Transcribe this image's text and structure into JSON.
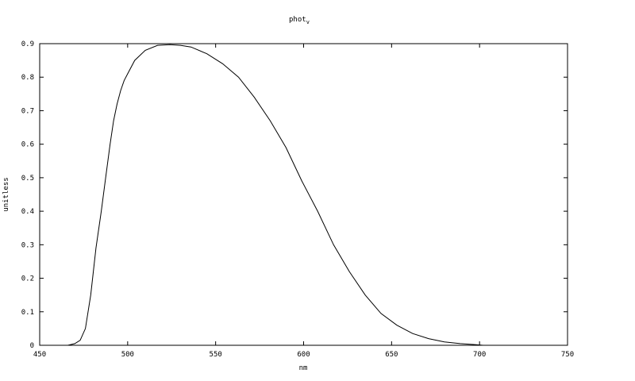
{
  "chart_data": {
    "type": "line",
    "title": "phot",
    "title_subscript": "v",
    "xlabel": "nm",
    "ylabel": "unitless",
    "xlim": [
      450,
      750
    ],
    "ylim": [
      0,
      0.9
    ],
    "xticks": [
      "450",
      "500",
      "550",
      "600",
      "650",
      "700",
      "750"
    ],
    "yticks": [
      "0",
      "0.1",
      "0.2",
      "0.3",
      "0.4",
      "0.5",
      "0.6",
      "0.7",
      "0.8",
      "0.9"
    ],
    "grid": false,
    "line_color": "#000000",
    "x": [
      450,
      466,
      470,
      473,
      476,
      479,
      482,
      485,
      487.5,
      490,
      492,
      494,
      496,
      498,
      500,
      504,
      510,
      517,
      524,
      530,
      536,
      545,
      554,
      563,
      572,
      581,
      590,
      599,
      608,
      617,
      626,
      635,
      644,
      653,
      662,
      671,
      680,
      689,
      698,
      702
    ],
    "y": [
      0,
      0,
      0.005,
      0.015,
      0.05,
      0.15,
      0.29,
      0.4,
      0.5,
      0.6,
      0.67,
      0.72,
      0.76,
      0.79,
      0.81,
      0.85,
      0.88,
      0.895,
      0.897,
      0.895,
      0.89,
      0.87,
      0.84,
      0.8,
      0.74,
      0.67,
      0.59,
      0.49,
      0.4,
      0.3,
      0.22,
      0.15,
      0.095,
      0.06,
      0.035,
      0.02,
      0.01,
      0.005,
      0.002,
      0
    ]
  }
}
